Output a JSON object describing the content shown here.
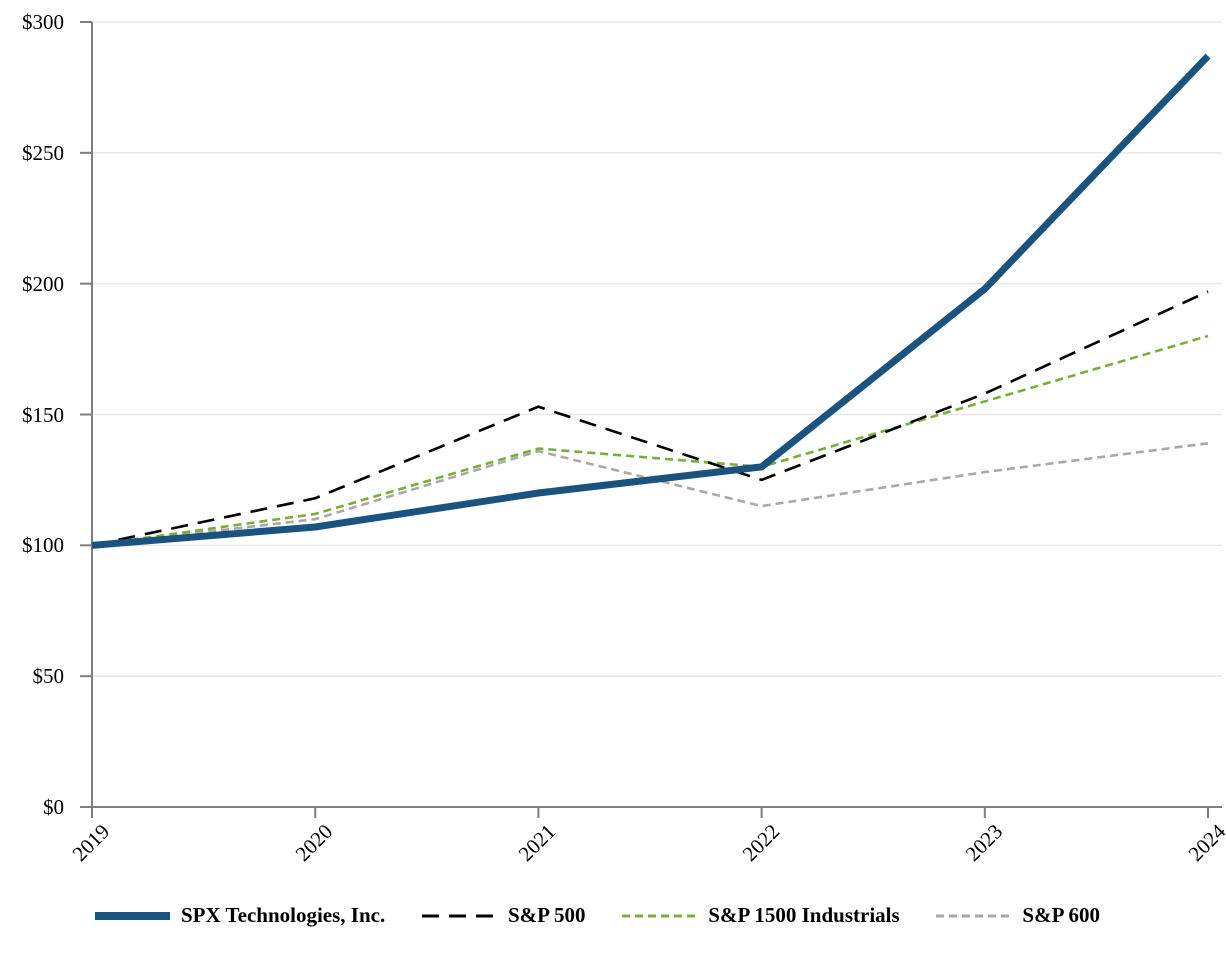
{
  "chart_data": {
    "type": "line",
    "title": "",
    "x_categories": [
      "2019",
      "2020",
      "2021",
      "2022",
      "2023",
      "2024"
    ],
    "y_axis": {
      "min": 0,
      "max": 300,
      "ticks": [
        {
          "label": "$0",
          "value": 0
        },
        {
          "label": "$50",
          "value": 50
        },
        {
          "label": "$100",
          "value": 100
        },
        {
          "label": "$150",
          "value": 150
        },
        {
          "label": "$200",
          "value": 200
        },
        {
          "label": "$250",
          "value": 250
        },
        {
          "label": "$300",
          "value": 300
        }
      ]
    },
    "series": [
      {
        "name": "SPX Technologies, Inc.",
        "values": [
          100,
          107,
          120,
          130,
          198,
          287
        ],
        "color": "#1B5380",
        "style": "solid",
        "weight": "thick"
      },
      {
        "name": "S&P 500",
        "values": [
          100,
          118,
          153,
          125,
          158,
          197
        ],
        "color": "#000000",
        "style": "long-dash",
        "weight": "thin"
      },
      {
        "name": "S&P 1500 Industrials",
        "values": [
          100,
          112,
          137,
          130,
          155,
          180
        ],
        "color": "#7CAC3A",
        "style": "short-dash",
        "weight": "thin"
      },
      {
        "name": "S&P 600",
        "values": [
          100,
          110,
          136,
          115,
          128,
          139
        ],
        "color": "#A9A9A9",
        "style": "short-dash",
        "weight": "thin"
      }
    ],
    "grid": "horizontal",
    "legend_position": "bottom",
    "axis_color": "#7F7F7F",
    "gridline_color": "#E8E8E8"
  }
}
